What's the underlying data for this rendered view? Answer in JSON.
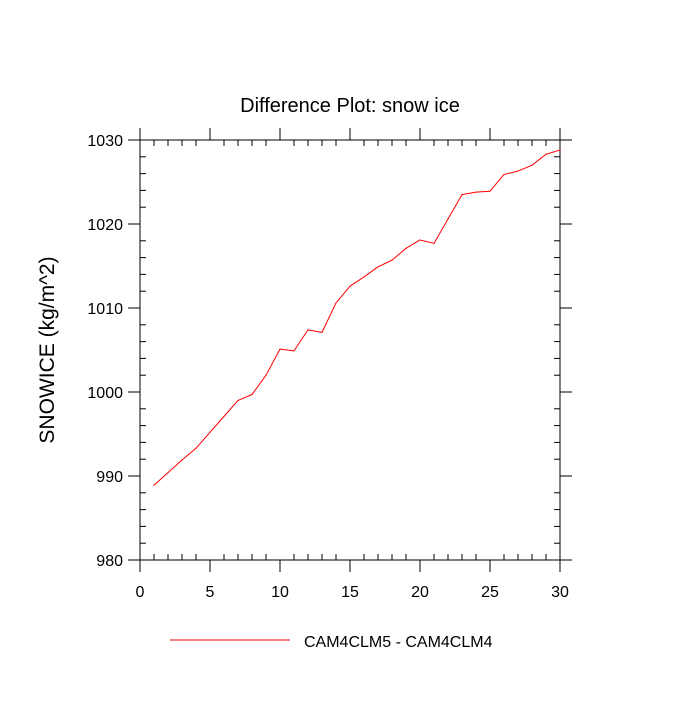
{
  "chart_data": {
    "type": "line",
    "title": "Difference Plot: snow ice",
    "xlabel": "",
    "ylabel": "SNOWICE  (kg/m^2)",
    "xlim": [
      0,
      30
    ],
    "ylim": [
      980,
      1030
    ],
    "x_ticks": [
      0,
      5,
      10,
      15,
      20,
      25,
      30
    ],
    "y_ticks": [
      980,
      990,
      1000,
      1010,
      1020,
      1030
    ],
    "x_minor_step": 1,
    "y_minor_step": 2,
    "grid": false,
    "legend_position": "bottom",
    "series": [
      {
        "name": "CAM4CLM5 - CAM4CLM4",
        "color": "#ff0000",
        "x": [
          1,
          2,
          3,
          4,
          5,
          6,
          7,
          8,
          9,
          10,
          11,
          12,
          13,
          14,
          15,
          16,
          17,
          18,
          19,
          20,
          21,
          22,
          23,
          24,
          25,
          26,
          27,
          28,
          29,
          30
        ],
        "y": [
          988.9,
          990.4,
          991.9,
          993.3,
          995.2,
          997.1,
          999.0,
          999.7,
          1002.0,
          1005.1,
          1004.9,
          1007.4,
          1007.1,
          1010.6,
          1012.6,
          1013.7,
          1014.9,
          1015.7,
          1017.1,
          1018.1,
          1017.7,
          1020.6,
          1023.5,
          1023.8,
          1023.9,
          1025.9,
          1026.3,
          1027.0,
          1028.3,
          1028.8
        ]
      }
    ]
  }
}
